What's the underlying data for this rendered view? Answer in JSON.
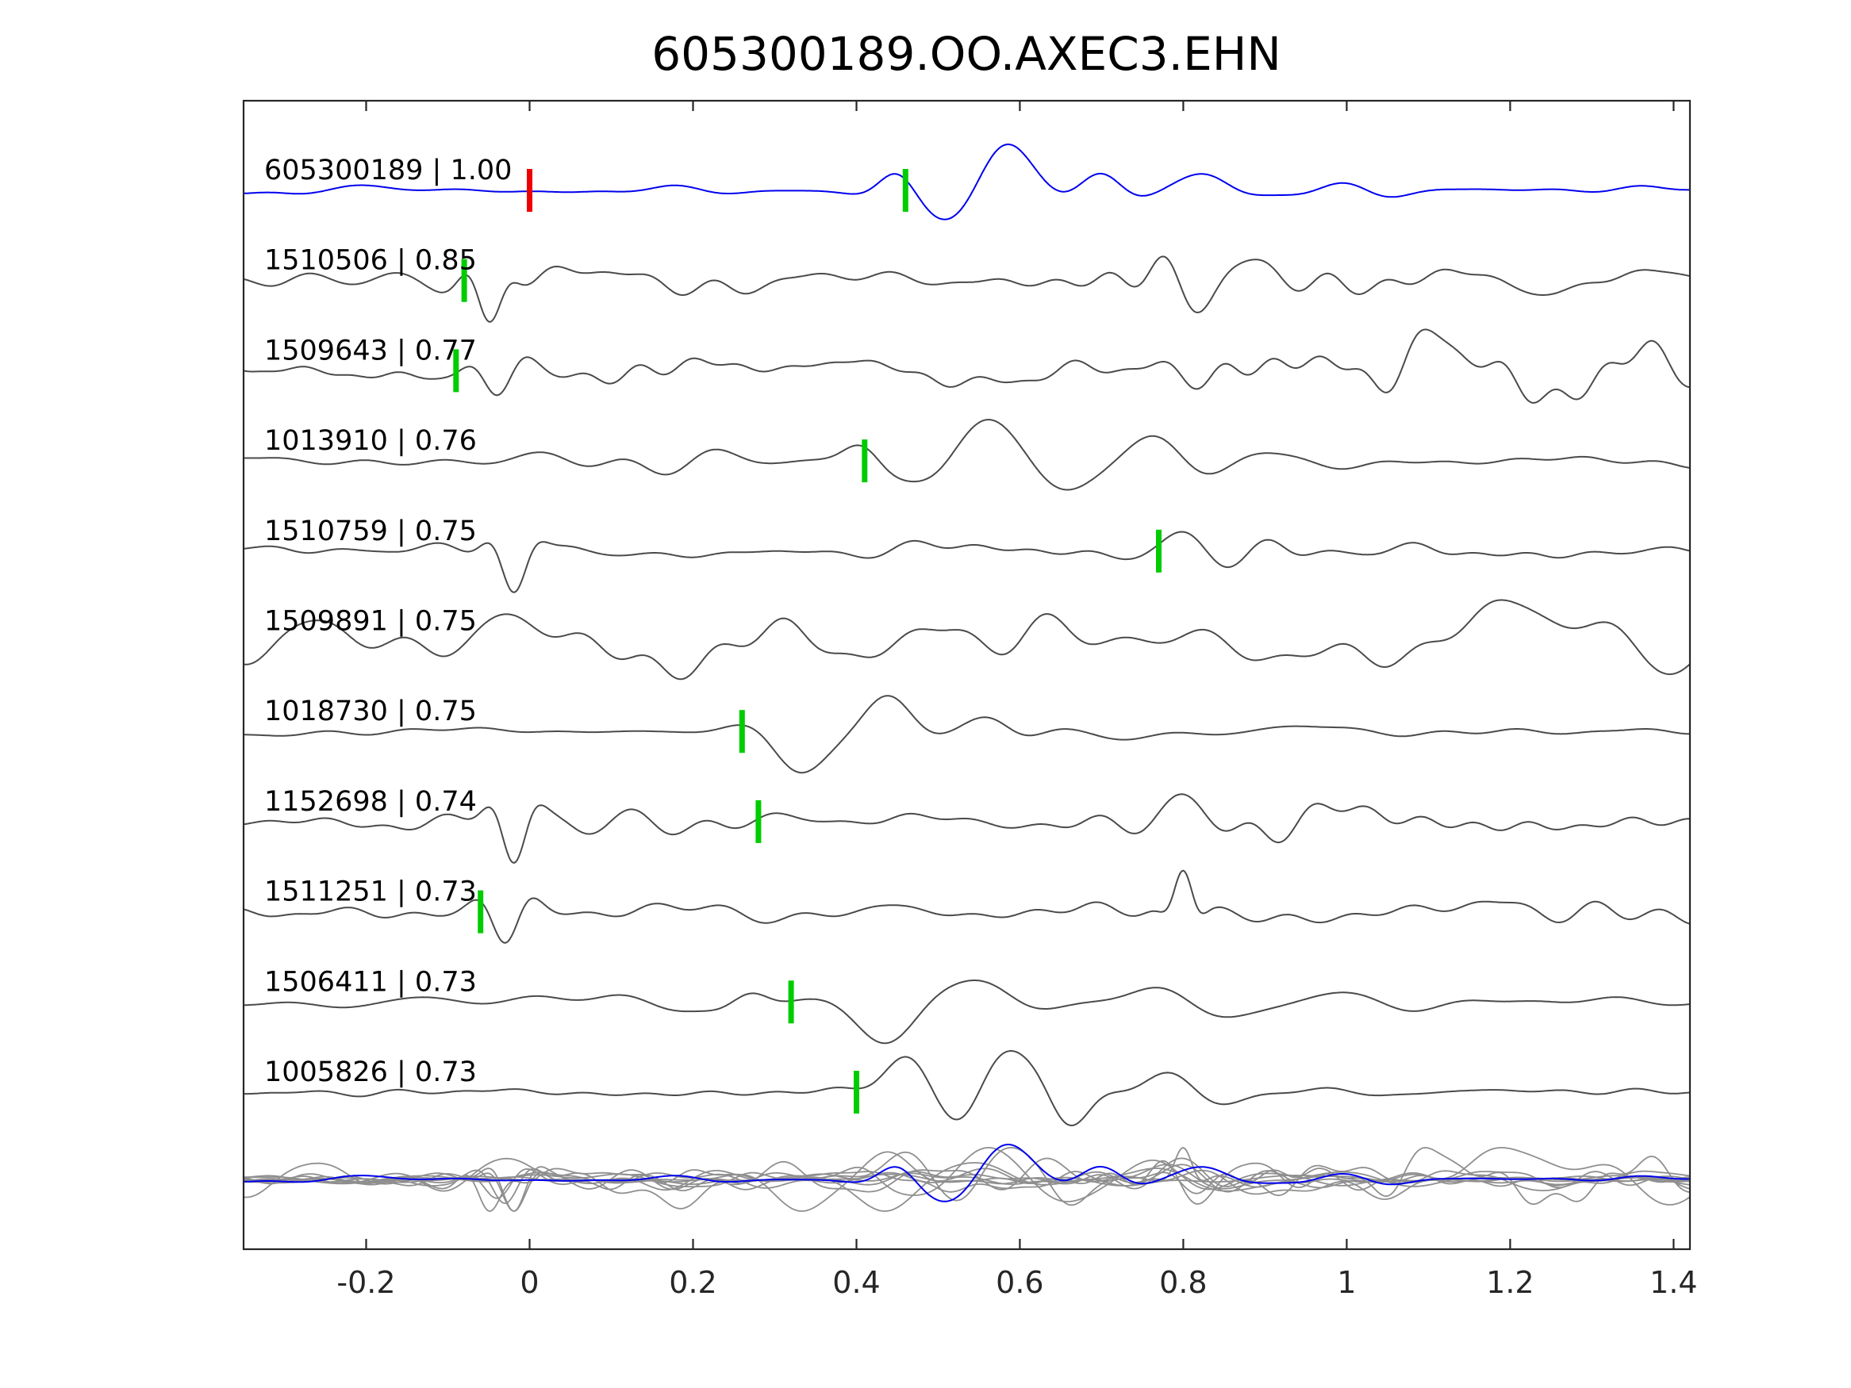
{
  "title": "605300189.OO.AXEC3.EHN",
  "colors": {
    "template_blue": "#0000ee",
    "detection_gray": "#4a4a4a",
    "overlay_gray": "#8f8f8f",
    "pick_green": "#00cc00",
    "pick_red": "#ee0000",
    "axis": "#262626",
    "label_text": "#000000",
    "background": "#ffffff"
  },
  "chart_data": {
    "type": "line",
    "title": "605300189.OO.AXEC3.EHN",
    "subtitle": "",
    "xlabel": "",
    "ylabel": "",
    "x_range": [
      -0.35,
      1.42
    ],
    "x_ticks": [
      -0.2,
      0,
      0.2,
      0.4,
      0.6,
      0.8,
      1,
      1.2,
      1.4
    ],
    "x_tick_labels": [
      "-0.2",
      "0",
      "0.2",
      "0.4",
      "0.6",
      "0.8",
      "1",
      "1.2",
      "1.4"
    ],
    "grid": false,
    "legend": "none",
    "description": "Stacked normalized seismic waveform traces: blue template at top, gray detections below, all traces superimposed in the bottom row. Vertical colored bars mark pick times.",
    "traces": [
      {
        "id": "605300189",
        "label": "605300189 | 1.00",
        "correlation": 1.0,
        "color": "blue",
        "picks": [
          {
            "t": 0.0,
            "color": "red"
          },
          {
            "t": 0.46,
            "color": "green"
          }
        ],
        "synth": {
          "seed": 11,
          "noise_amp": 0.07,
          "noise_freq_max": 11,
          "noise_bumps": [
            {
              "t": -0.1,
              "w": 0.25,
              "a": 0.04
            },
            {
              "t": 1.15,
              "w": 0.3,
              "a": 0.05
            }
          ],
          "wavelets": [
            {
              "t": 0.45,
              "f": 7,
              "w": 0.03,
              "a": 0.3,
              "ph": 0
            },
            {
              "t": 0.56,
              "f": 4.5,
              "w": 0.05,
              "a": 1.0,
              "ph": -1.1
            },
            {
              "t": 0.7,
              "f": 6,
              "w": 0.035,
              "a": 0.35,
              "ph": 0
            },
            {
              "t": 0.84,
              "f": 5,
              "w": 0.04,
              "a": 0.32,
              "ph": 0.6
            },
            {
              "t": 1.02,
              "f": 7,
              "w": 0.05,
              "a": 0.12,
              "ph": 1.5
            }
          ]
        }
      },
      {
        "id": "1510506",
        "label": "1510506 | 0.85",
        "correlation": 0.85,
        "color": "gray",
        "picks": [
          {
            "t": -0.08,
            "color": "green"
          }
        ],
        "synth": {
          "seed": 22,
          "noise_amp": 0.32,
          "noise_freq_max": 15,
          "noise_bumps": [
            {
              "t": 0.95,
              "w": 0.35,
              "a": 0.18
            }
          ],
          "wavelets": [
            {
              "t": -0.05,
              "f": 12,
              "w": 0.022,
              "a": 1.0,
              "ph": 3.1
            },
            {
              "t": 0.78,
              "f": 10,
              "w": 0.035,
              "a": 0.55,
              "ph": 0.5
            }
          ]
        }
      },
      {
        "id": "1509643",
        "label": "1509643 | 0.77",
        "correlation": 0.77,
        "color": "gray",
        "picks": [
          {
            "t": -0.09,
            "color": "green"
          }
        ],
        "synth": {
          "seed": 33,
          "noise_amp": 0.42,
          "noise_freq_max": 17,
          "noise_bumps": [
            {
              "t": 1.2,
              "w": 0.3,
              "a": 0.55
            },
            {
              "t": 0.97,
              "w": 0.12,
              "a": 0.45
            }
          ],
          "wavelets": [
            {
              "t": -0.04,
              "f": 11,
              "w": 0.03,
              "a": 1.0,
              "ph": 3.1
            }
          ]
        }
      },
      {
        "id": "1013910",
        "label": "1013910 | 0.76",
        "correlation": 0.76,
        "color": "gray",
        "picks": [
          {
            "t": 0.41,
            "color": "green"
          }
        ],
        "synth": {
          "seed": 44,
          "noise_amp": 0.26,
          "noise_freq_max": 11,
          "noise_bumps": [
            {
              "t": 0.15,
              "w": 0.2,
              "a": 0.15
            }
          ],
          "wavelets": [
            {
              "t": 0.41,
              "f": 7,
              "w": 0.03,
              "a": 0.5,
              "ph": 0.3
            },
            {
              "t": 0.52,
              "f": 4,
              "w": 0.055,
              "a": 0.95,
              "ph": -1.2
            },
            {
              "t": 0.63,
              "f": 4,
              "w": 0.05,
              "a": 1.0,
              "ph": 2.0
            },
            {
              "t": 0.78,
              "f": 4.5,
              "w": 0.05,
              "a": 0.6,
              "ph": 0.8
            },
            {
              "t": 0.95,
              "f": 4,
              "w": 0.07,
              "a": 0.35,
              "ph": 1.6
            }
          ]
        }
      },
      {
        "id": "1510759",
        "label": "1510759 | 0.75",
        "correlation": 0.75,
        "color": "gray",
        "picks": [
          {
            "t": 0.77,
            "color": "green"
          }
        ],
        "synth": {
          "seed": 55,
          "noise_amp": 0.24,
          "noise_freq_max": 14,
          "noise_bumps": [],
          "wavelets": [
            {
              "t": -0.02,
              "f": 11,
              "w": 0.022,
              "a": 1.0,
              "ph": 3.1
            },
            {
              "t": 0.8,
              "f": 7,
              "w": 0.05,
              "a": 0.5,
              "ph": 0.4
            },
            {
              "t": 0.92,
              "f": 9,
              "w": 0.04,
              "a": 0.28,
              "ph": 1.2
            }
          ]
        }
      },
      {
        "id": "1509891",
        "label": "1509891 | 0.75",
        "correlation": 0.75,
        "color": "gray",
        "picks": [],
        "synth": {
          "seed": 66,
          "noise_amp": 0.55,
          "noise_freq_max": 12,
          "noise_bumps": [
            {
              "t": 0.4,
              "w": 0.25,
              "a": 0.3
            },
            {
              "t": 1.25,
              "w": 0.25,
              "a": 0.4
            },
            {
              "t": 0.07,
              "w": 0.1,
              "a": 0.35
            }
          ],
          "wavelets": [
            {
              "t": 0.05,
              "f": 5,
              "w": 0.05,
              "a": 0.6,
              "ph": 3.1
            }
          ]
        }
      },
      {
        "id": "1018730",
        "label": "1018730 | 0.75",
        "correlation": 0.75,
        "color": "gray",
        "picks": [
          {
            "t": 0.26,
            "color": "green"
          }
        ],
        "synth": {
          "seed": 77,
          "noise_amp": 0.16,
          "noise_freq_max": 11,
          "noise_bumps": [
            {
              "t": 0.6,
              "w": 0.1,
              "a": 0.12
            }
          ],
          "wavelets": [
            {
              "t": 0.33,
              "f": 4.5,
              "w": 0.045,
              "a": 1.0,
              "ph": 3.1
            },
            {
              "t": 0.44,
              "f": 5,
              "w": 0.04,
              "a": 0.75,
              "ph": 0.2
            },
            {
              "t": 0.58,
              "f": 6,
              "w": 0.035,
              "a": 0.3,
              "ph": 1.0
            }
          ]
        }
      },
      {
        "id": "1152698",
        "label": "1152698 | 0.74",
        "correlation": 0.74,
        "color": "gray",
        "picks": [
          {
            "t": 0.28,
            "color": "green"
          }
        ],
        "synth": {
          "seed": 88,
          "noise_amp": 0.3,
          "noise_freq_max": 15,
          "noise_bumps": [],
          "wavelets": [
            {
              "t": -0.02,
              "f": 12,
              "w": 0.022,
              "a": 0.85,
              "ph": 3.1
            },
            {
              "t": 0.14,
              "f": 8,
              "w": 0.05,
              "a": 0.3,
              "ph": 1.0
            },
            {
              "t": 0.8,
              "f": 6.5,
              "w": 0.04,
              "a": 0.65,
              "ph": 0.0
            },
            {
              "t": 0.9,
              "f": 8,
              "w": 0.035,
              "a": 0.4,
              "ph": 2.0
            }
          ]
        }
      },
      {
        "id": "1511251",
        "label": "1511251 | 0.73",
        "correlation": 0.73,
        "color": "gray",
        "picks": [
          {
            "t": -0.06,
            "color": "green"
          }
        ],
        "synth": {
          "seed": 99,
          "noise_amp": 0.3,
          "noise_freq_max": 14,
          "noise_bumps": [
            {
              "t": 1.15,
              "w": 0.25,
              "a": 0.2
            }
          ],
          "wavelets": [
            {
              "t": -0.03,
              "f": 11,
              "w": 0.025,
              "a": 0.85,
              "ph": 3.1
            },
            {
              "t": 0.8,
              "f": 14,
              "w": 0.015,
              "a": 1.0,
              "ph": 0.0
            }
          ]
        }
      },
      {
        "id": "1506411",
        "label": "1506411 | 0.73",
        "correlation": 0.73,
        "color": "gray",
        "picks": [
          {
            "t": 0.32,
            "color": "green"
          }
        ],
        "synth": {
          "seed": 110,
          "noise_amp": 0.22,
          "noise_freq_max": 10,
          "noise_bumps": [],
          "wavelets": [
            {
              "t": 0.43,
              "f": 3.8,
              "w": 0.05,
              "a": 1.0,
              "ph": 3.1
            },
            {
              "t": 0.57,
              "f": 5,
              "w": 0.05,
              "a": 0.45,
              "ph": 0.5
            },
            {
              "t": 0.8,
              "f": 4.5,
              "w": 0.06,
              "a": 0.42,
              "ph": 1.2
            },
            {
              "t": 1.05,
              "f": 4.5,
              "w": 0.06,
              "a": 0.35,
              "ph": 2.0
            },
            {
              "t": 0.27,
              "f": 7,
              "w": 0.03,
              "a": 0.3,
              "ph": 0.0
            }
          ]
        }
      },
      {
        "id": "1005826",
        "label": "1005826 | 0.73",
        "correlation": 0.73,
        "color": "gray",
        "picks": [
          {
            "t": 0.4,
            "color": "green"
          }
        ],
        "synth": {
          "seed": 121,
          "noise_amp": 0.2,
          "noise_freq_max": 12,
          "noise_bumps": [],
          "wavelets": [
            {
              "t": 0.46,
              "f": 5,
              "w": 0.04,
              "a": 0.8,
              "ph": 0.0
            },
            {
              "t": 0.56,
              "f": 6,
              "w": 0.045,
              "a": 1.0,
              "ph": -1.0
            },
            {
              "t": 0.65,
              "f": 7,
              "w": 0.035,
              "a": 0.7,
              "ph": 2.2
            },
            {
              "t": 0.8,
              "f": 6,
              "w": 0.05,
              "a": 0.45,
              "ph": 0.9
            },
            {
              "t": 1.0,
              "f": 6,
              "w": 0.05,
              "a": 0.25,
              "ph": 1.5
            }
          ]
        }
      }
    ],
    "overlay_row": {
      "description": "All detection traces superimposed in gray with the blue template trace over them",
      "blue_trace_id": "605300189"
    }
  }
}
